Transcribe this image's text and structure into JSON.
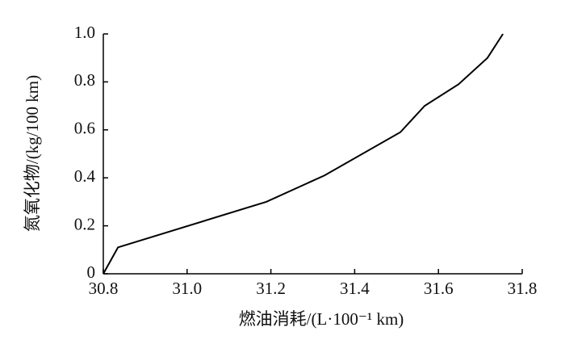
{
  "chart_data": {
    "type": "line",
    "x_label": "燃油消耗/(L·100⁻¹ km)",
    "y_label": "氮氧化物/(kg/100 km)",
    "x": [
      30.8,
      30.835,
      31.189,
      31.328,
      31.509,
      31.567,
      31.648,
      31.717,
      31.754
    ],
    "series": [
      {
        "color": "#000000",
        "values": [
          0,
          0.11,
          0.3,
          0.41,
          0.59,
          0.7,
          0.79,
          0.9,
          1.0
        ]
      }
    ],
    "xlim": [
      30.8,
      31.8
    ],
    "xticks": [
      30.8,
      {
        "value": 31,
        "label": "31.0"
      },
      31.2,
      31.4,
      31.6,
      31.8
    ],
    "ylim": [
      0,
      1
    ],
    "yticks": [
      0,
      0.2,
      0.4,
      0.6,
      0.8,
      {
        "value": 1,
        "label": "1.0"
      }
    ]
  }
}
